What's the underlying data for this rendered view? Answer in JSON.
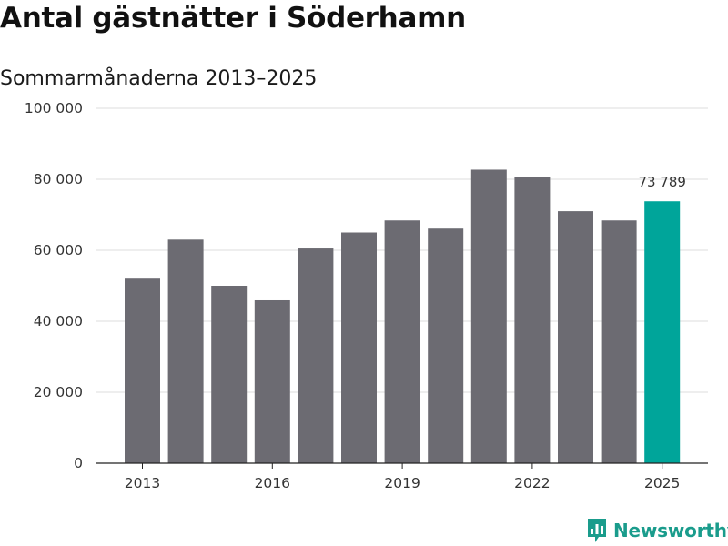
{
  "chart_data": {
    "type": "bar",
    "title": "Antal gästnätter i Söderhamn",
    "subtitle": "Sommarmånaderna 2013–2025",
    "xlabel": "",
    "ylabel": "",
    "categories": [
      "2013",
      "2014",
      "2015",
      "2016",
      "2017",
      "2018",
      "2019",
      "2020",
      "2021",
      "2022",
      "2023",
      "2024",
      "2025"
    ],
    "values": [
      52000,
      63000,
      50000,
      45900,
      60500,
      65000,
      68400,
      66100,
      82700,
      80700,
      71000,
      68400,
      73789
    ],
    "ylim": [
      0,
      100000
    ],
    "yticks": [
      0,
      20000,
      40000,
      60000,
      80000,
      100000
    ],
    "ytick_labels": [
      "0",
      "20 000",
      "40 000",
      "60 000",
      "80 000",
      "100 000"
    ],
    "xtick_labels": [
      "2013",
      "2016",
      "2019",
      "2022",
      "2025"
    ],
    "data_labels": [
      {
        "category": "2025",
        "text": "73 789"
      }
    ],
    "bar_color": "#6c6b72",
    "highlight_color": "#00a59a",
    "highlight_category": "2025",
    "grid": true
  },
  "brand": {
    "name": "Newsworthy",
    "logo_icon": "bar-chart-logo-icon",
    "color": "#1a9c8c"
  }
}
